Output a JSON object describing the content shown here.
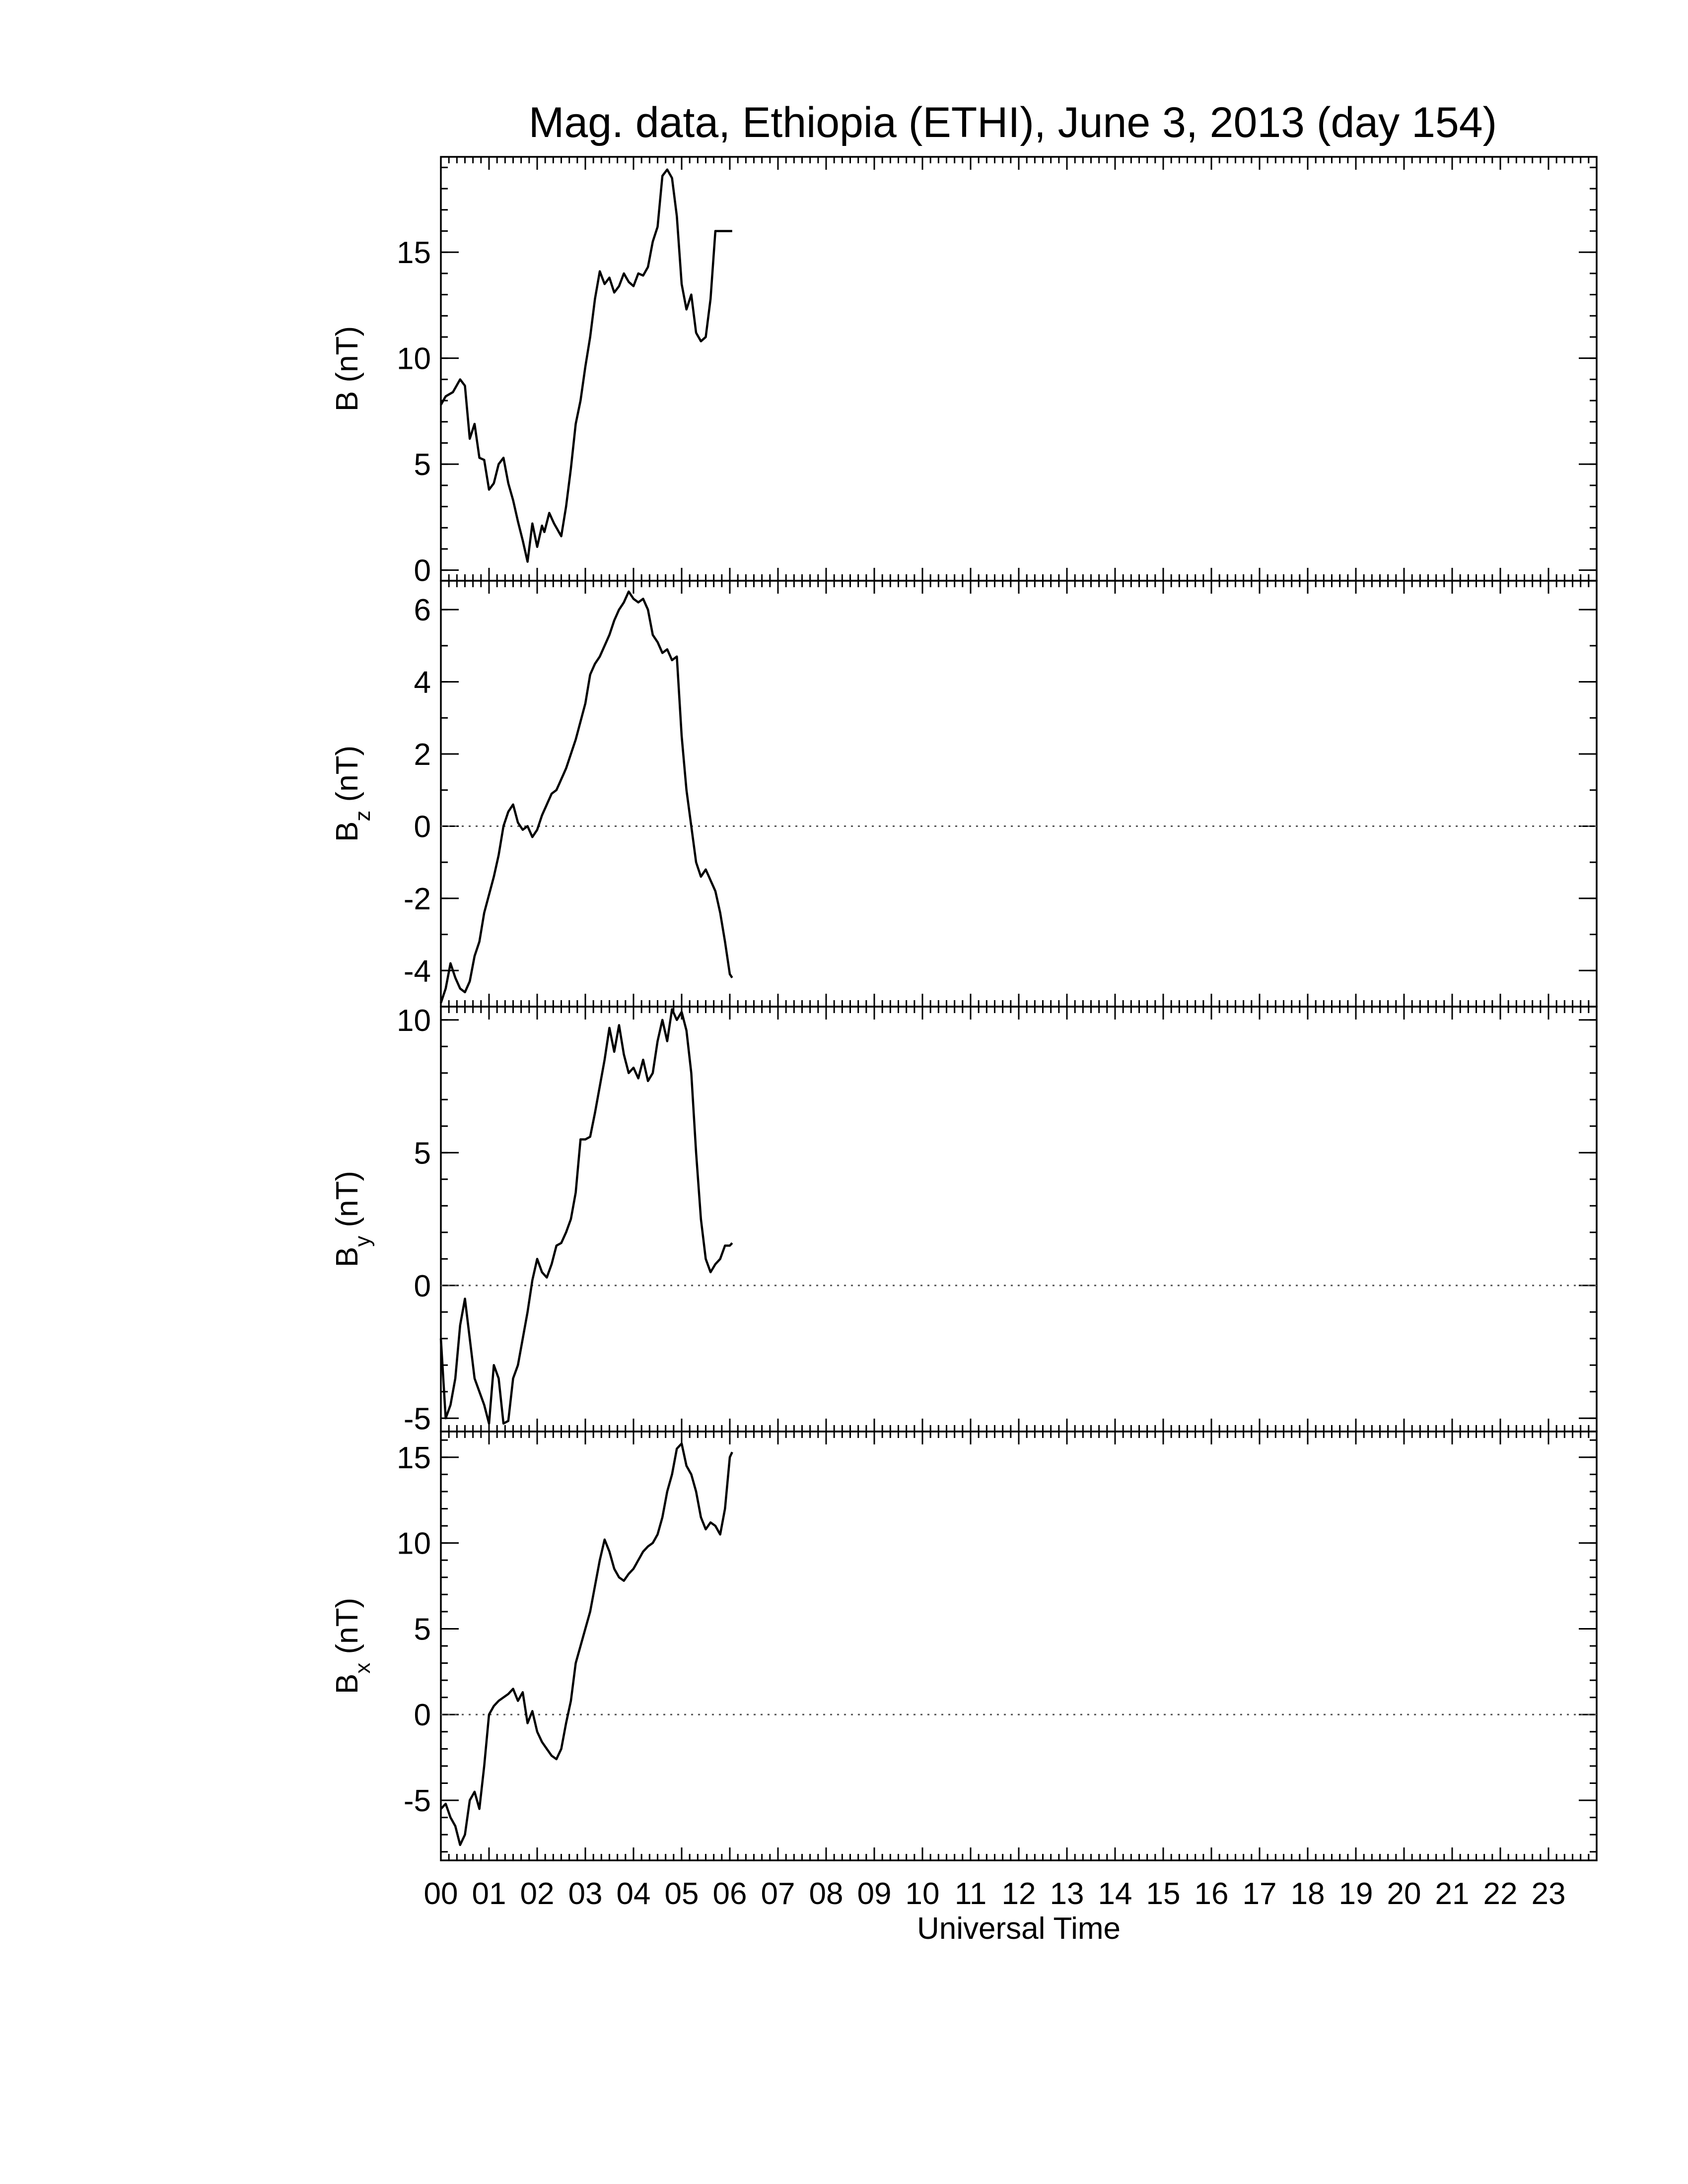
{
  "chart_data": {
    "type": "line",
    "title": "Mag. data, Ethiopia (ETHI), June 3, 2013 (day 154)",
    "xlabel": "Universal Time",
    "x_tick_labels": [
      "00",
      "01",
      "02",
      "03",
      "04",
      "05",
      "06",
      "07",
      "08",
      "09",
      "10",
      "11",
      "12",
      "13",
      "14",
      "15",
      "16",
      "17",
      "18",
      "19",
      "20",
      "21",
      "22",
      "23"
    ],
    "xlim": [
      0,
      24
    ],
    "panels": [
      {
        "ylabel": "B (nT)",
        "ylabel_main": "B",
        "ylabel_sub": "",
        "ylabel_unit": " (nT)",
        "ylim": [
          -0.5,
          19.5
        ],
        "yticks": [
          0,
          5,
          10,
          15
        ],
        "zero_line": false,
        "x": [
          0,
          0.1,
          0.25,
          0.4,
          0.5,
          0.6,
          0.7,
          0.8,
          0.9,
          1.0,
          1.1,
          1.2,
          1.3,
          1.4,
          1.5,
          1.6,
          1.7,
          1.8,
          1.9,
          2.0,
          2.1,
          2.15,
          2.25,
          2.35,
          2.5,
          2.6,
          2.7,
          2.8,
          2.9,
          3.0,
          3.1,
          3.2,
          3.3,
          3.4,
          3.5,
          3.6,
          3.7,
          3.8,
          3.9,
          4.0,
          4.1,
          4.2,
          4.3,
          4.4,
          4.5,
          4.6,
          4.7,
          4.8,
          4.9,
          5.0,
          5.1,
          5.2,
          5.3,
          5.4,
          5.5,
          5.6,
          5.7,
          5.8,
          5.85,
          5.9,
          6.0,
          6.05
        ],
        "values": [
          7.8,
          8.2,
          8.4,
          9.0,
          8.7,
          6.2,
          6.9,
          5.3,
          5.2,
          3.8,
          4.1,
          5.0,
          5.3,
          4.1,
          3.3,
          2.3,
          1.4,
          0.4,
          2.2,
          1.1,
          2.1,
          1.8,
          2.7,
          2.2,
          1.6,
          3.0,
          4.8,
          6.9,
          8.0,
          9.6,
          11.0,
          12.8,
          14.1,
          13.5,
          13.8,
          13.1,
          13.4,
          14.0,
          13.6,
          13.4,
          14.0,
          13.9,
          14.3,
          15.5,
          16.2,
          18.6,
          18.9,
          18.5,
          16.7,
          13.5,
          12.3,
          13.0,
          11.2,
          10.8,
          11.0,
          12.8,
          16.0,
          16.0,
          16.0,
          16.0,
          16.0,
          16.0
        ]
      },
      {
        "ylabel": "Bz (nT)",
        "ylabel_main": "B",
        "ylabel_sub": "z",
        "ylabel_unit": " (nT)",
        "ylim": [
          -5.0,
          6.8
        ],
        "yticks": [
          -4,
          -2,
          0,
          2,
          4,
          6
        ],
        "zero_line": true,
        "x": [
          0,
          0.1,
          0.2,
          0.3,
          0.4,
          0.5,
          0.6,
          0.7,
          0.8,
          0.9,
          1.0,
          1.1,
          1.2,
          1.3,
          1.4,
          1.5,
          1.6,
          1.7,
          1.8,
          1.9,
          2.0,
          2.1,
          2.2,
          2.3,
          2.4,
          2.5,
          2.6,
          2.7,
          2.8,
          2.9,
          3.0,
          3.1,
          3.2,
          3.3,
          3.4,
          3.5,
          3.6,
          3.7,
          3.8,
          3.9,
          4.0,
          4.1,
          4.2,
          4.3,
          4.4,
          4.5,
          4.6,
          4.7,
          4.8,
          4.9,
          5.0,
          5.1,
          5.2,
          5.3,
          5.4,
          5.5,
          5.6,
          5.7,
          5.8,
          5.9,
          6.0,
          6.05
        ],
        "values": [
          -4.9,
          -4.5,
          -3.8,
          -4.2,
          -4.5,
          -4.6,
          -4.3,
          -3.6,
          -3.2,
          -2.4,
          -1.9,
          -1.4,
          -0.8,
          0.0,
          0.4,
          0.6,
          0.1,
          -0.1,
          0.0,
          -0.3,
          -0.1,
          0.3,
          0.6,
          0.9,
          1.0,
          1.3,
          1.6,
          2.0,
          2.4,
          2.9,
          3.4,
          4.2,
          4.5,
          4.7,
          5.0,
          5.3,
          5.7,
          6.0,
          6.2,
          6.5,
          6.3,
          6.2,
          6.3,
          6.0,
          5.3,
          5.1,
          4.8,
          4.9,
          4.6,
          4.7,
          2.5,
          1.0,
          0.0,
          -1.0,
          -1.4,
          -1.2,
          -1.5,
          -1.8,
          -2.4,
          -3.2,
          -4.1,
          -4.2
        ]
      },
      {
        "ylabel": "By (nT)",
        "ylabel_main": "B",
        "ylabel_sub": "y",
        "ylabel_unit": " (nT)",
        "ylim": [
          -5.5,
          10.5
        ],
        "yticks": [
          -5,
          0,
          5,
          10
        ],
        "zero_line": true,
        "x": [
          0,
          0.1,
          0.2,
          0.3,
          0.4,
          0.5,
          0.6,
          0.7,
          0.8,
          0.9,
          1.0,
          1.1,
          1.2,
          1.3,
          1.4,
          1.5,
          1.6,
          1.7,
          1.8,
          1.9,
          2.0,
          2.1,
          2.2,
          2.3,
          2.4,
          2.5,
          2.6,
          2.7,
          2.8,
          2.9,
          3.0,
          3.1,
          3.2,
          3.3,
          3.4,
          3.5,
          3.6,
          3.7,
          3.8,
          3.9,
          4.0,
          4.1,
          4.2,
          4.3,
          4.4,
          4.5,
          4.6,
          4.7,
          4.8,
          4.9,
          5.0,
          5.1,
          5.2,
          5.3,
          5.4,
          5.5,
          5.6,
          5.7,
          5.8,
          5.9,
          6.0,
          6.05
        ],
        "values": [
          -2.0,
          -5.0,
          -4.5,
          -3.5,
          -1.5,
          -0.5,
          -2.0,
          -3.5,
          -4.0,
          -4.5,
          -5.2,
          -3.0,
          -3.5,
          -5.2,
          -5.1,
          -3.5,
          -3.0,
          -2.0,
          -1.0,
          0.2,
          1.0,
          0.5,
          0.3,
          0.8,
          1.5,
          1.6,
          2.0,
          2.5,
          3.5,
          5.5,
          5.5,
          5.6,
          6.5,
          7.5,
          8.5,
          9.7,
          8.8,
          9.8,
          8.7,
          8.0,
          8.2,
          7.8,
          8.5,
          7.7,
          8.0,
          9.2,
          10.0,
          9.2,
          10.4,
          10.0,
          10.3,
          9.6,
          8.0,
          5.0,
          2.5,
          1.0,
          0.5,
          0.8,
          1.0,
          1.5,
          1.5,
          1.6
        ]
      },
      {
        "ylabel": "Bx (nT)",
        "ylabel_main": "B",
        "ylabel_sub": "x",
        "ylabel_unit": " (nT)",
        "ylim": [
          -8.5,
          16.5
        ],
        "yticks": [
          -5,
          0,
          5,
          10,
          15
        ],
        "zero_line": true,
        "x": [
          0,
          0.1,
          0.2,
          0.3,
          0.4,
          0.5,
          0.6,
          0.7,
          0.8,
          0.9,
          1.0,
          1.1,
          1.2,
          1.3,
          1.4,
          1.5,
          1.6,
          1.7,
          1.8,
          1.9,
          2.0,
          2.1,
          2.2,
          2.3,
          2.4,
          2.5,
          2.6,
          2.7,
          2.8,
          2.9,
          3.0,
          3.1,
          3.2,
          3.3,
          3.4,
          3.5,
          3.6,
          3.7,
          3.8,
          3.9,
          4.0,
          4.1,
          4.2,
          4.3,
          4.4,
          4.5,
          4.6,
          4.7,
          4.8,
          4.9,
          5.0,
          5.1,
          5.2,
          5.3,
          5.4,
          5.5,
          5.6,
          5.7,
          5.8,
          5.9,
          6.0,
          6.05
        ],
        "values": [
          -5.5,
          -5.2,
          -6.0,
          -6.5,
          -7.6,
          -7.0,
          -5.0,
          -4.5,
          -5.5,
          -3.0,
          0.0,
          0.5,
          0.8,
          1.0,
          1.2,
          1.5,
          0.8,
          1.3,
          -0.5,
          0.2,
          -1.0,
          -1.6,
          -2.0,
          -2.4,
          -2.6,
          -2.0,
          -0.5,
          0.8,
          3.0,
          4.0,
          5.0,
          6.0,
          7.5,
          9.0,
          10.2,
          9.5,
          8.5,
          8.0,
          7.8,
          8.2,
          8.5,
          9.0,
          9.5,
          9.8,
          10.0,
          10.5,
          11.5,
          13.0,
          14.0,
          15.5,
          15.8,
          14.5,
          14.0,
          13.0,
          11.5,
          10.8,
          11.2,
          11.0,
          10.5,
          12.0,
          15.0,
          15.3
        ]
      }
    ]
  }
}
